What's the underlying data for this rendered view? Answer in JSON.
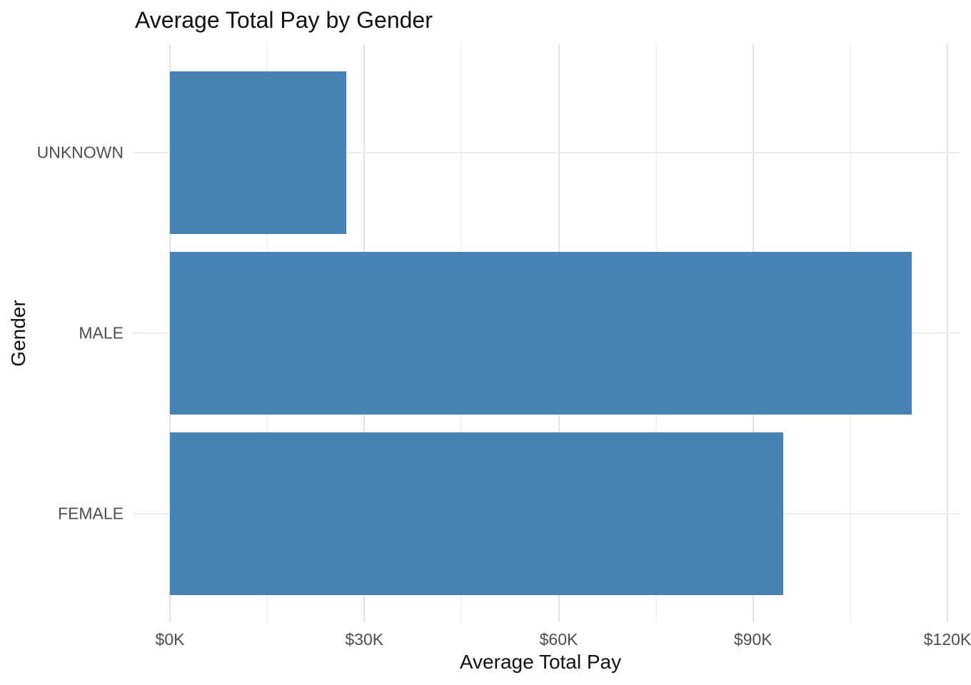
{
  "chart_data": {
    "type": "bar",
    "orientation": "horizontal",
    "title": "Average Total Pay by Gender",
    "xlabel": "Average Total Pay",
    "ylabel": "Gender",
    "categories": [
      "UNKNOWN",
      "MALE",
      "FEMALE"
    ],
    "values": [
      27200,
      114500,
      94700
    ],
    "xlim": [
      0,
      120000
    ],
    "x_tick_values": [
      0,
      30000,
      60000,
      90000,
      120000
    ],
    "x_tick_labels": [
      "$0K",
      "$30K",
      "$60K",
      "$90K",
      "$120K"
    ],
    "x_minor_tick_values": [
      15000,
      45000,
      75000,
      105000
    ],
    "grid": "vertical major+minor gridlines, horizontal line per category",
    "legend_position": "none",
    "bar_color": "#4682B4",
    "grid_major_color": "#E3E3E3",
    "grid_minor_color": "#F2F2F2",
    "category_line_color": "#EBEBEB",
    "tick_label_color": "#4D4D4D",
    "text_color": "#111111",
    "background_color": "#FFFFFF"
  }
}
